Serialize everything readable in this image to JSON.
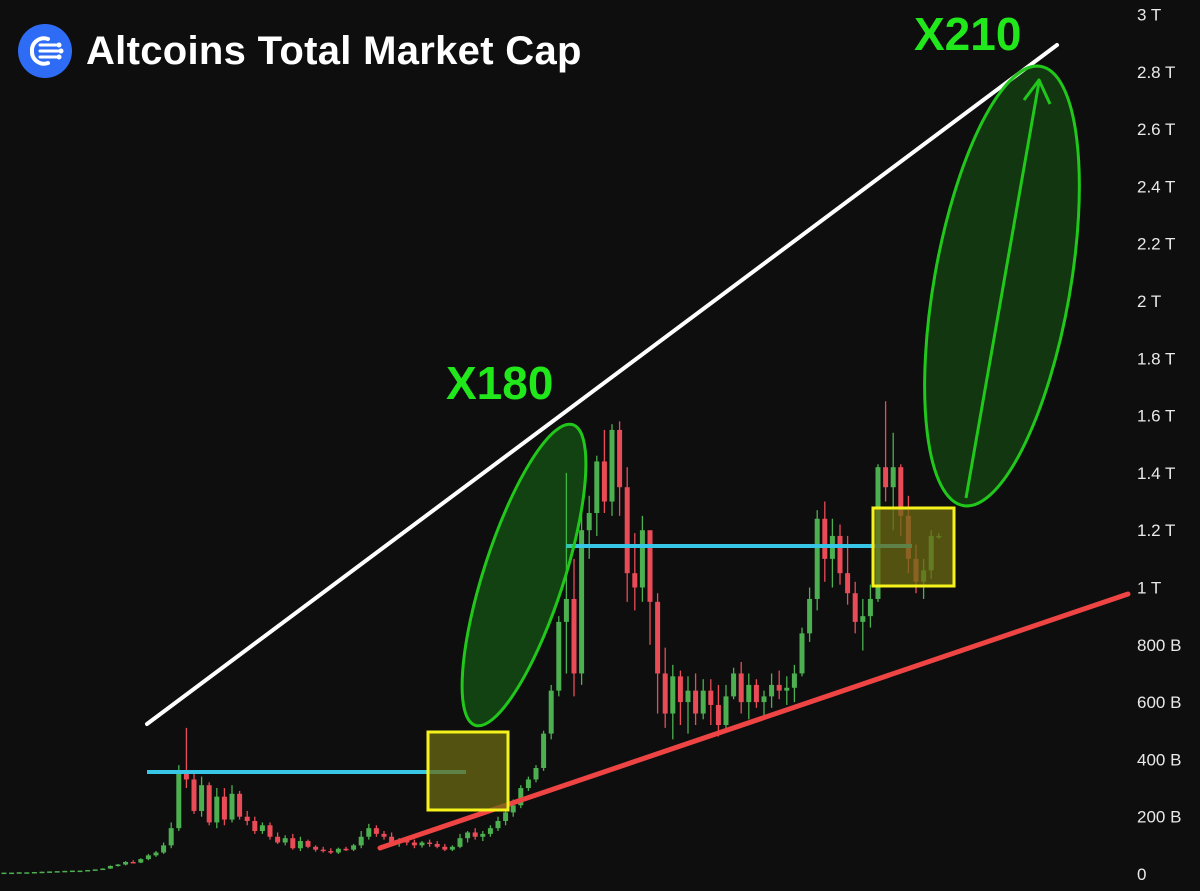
{
  "header": {
    "title": "Altcoins Total Market Cap",
    "logo_icon": "satellite-logo-icon"
  },
  "annotations": {
    "x180": "X180",
    "x210": "X210"
  },
  "colors": {
    "background": "#0e0e0e",
    "up": "#4caf50",
    "down": "#e94b57",
    "resistance": "#ffffff",
    "support": "#ef4444",
    "level": "#38c6e6",
    "zone_fill": "#6b6a12",
    "zone_stroke": "#f5f11a",
    "ellipse": "#21c81b",
    "label": "#21e81b"
  },
  "chart_data": {
    "type": "candlestick",
    "title": "Altcoins Total Market Cap",
    "y_unit": "USD",
    "ylim": [
      0,
      3000000000000
    ],
    "y_ticks": [
      {
        "value": 0,
        "label": "0"
      },
      {
        "value": 200000000000,
        "label": "200 B"
      },
      {
        "value": 400000000000,
        "label": "400 B"
      },
      {
        "value": 600000000000,
        "label": "600 B"
      },
      {
        "value": 800000000000,
        "label": "800 B"
      },
      {
        "value": 1000000000000,
        "label": "1 T"
      },
      {
        "value": 1200000000000,
        "label": "1.2 T"
      },
      {
        "value": 1400000000000,
        "label": "1.4 T"
      },
      {
        "value": 1600000000000,
        "label": "1.6 T"
      },
      {
        "value": 1800000000000,
        "label": "1.8 T"
      },
      {
        "value": 2000000000000,
        "label": "2 T"
      },
      {
        "value": 2200000000000,
        "label": "2.2 T"
      },
      {
        "value": 2400000000000,
        "label": "2.4 T"
      },
      {
        "value": 2600000000000,
        "label": "2.6 T"
      },
      {
        "value": 2800000000000,
        "label": "2.8 T"
      },
      {
        "value": 3000000000000,
        "label": "3 T"
      }
    ],
    "grid": false,
    "candles_units": "billions USD",
    "candles": [
      [
        5,
        5,
        5,
        5
      ],
      [
        5,
        5,
        5,
        5
      ],
      [
        5,
        6,
        5,
        6
      ],
      [
        6,
        6,
        6,
        6
      ],
      [
        6,
        7,
        6,
        7
      ],
      [
        7,
        8,
        7,
        8
      ],
      [
        8,
        9,
        8,
        9
      ],
      [
        9,
        10,
        9,
        10
      ],
      [
        10,
        11,
        10,
        11
      ],
      [
        11,
        12,
        11,
        12
      ],
      [
        12,
        12,
        12,
        12
      ],
      [
        12,
        14,
        12,
        14
      ],
      [
        14,
        16,
        13,
        16
      ],
      [
        16,
        20,
        15,
        19
      ],
      [
        19,
        30,
        18,
        28
      ],
      [
        28,
        35,
        26,
        33
      ],
      [
        33,
        45,
        30,
        42
      ],
      [
        42,
        48,
        38,
        40
      ],
      [
        40,
        55,
        38,
        52
      ],
      [
        52,
        70,
        48,
        65
      ],
      [
        65,
        80,
        60,
        75
      ],
      [
        75,
        110,
        70,
        100
      ],
      [
        100,
        180,
        90,
        160
      ],
      [
        160,
        380,
        150,
        355
      ],
      [
        355,
        510,
        300,
        330
      ],
      [
        330,
        350,
        210,
        220
      ],
      [
        220,
        340,
        200,
        310
      ],
      [
        310,
        320,
        170,
        180
      ],
      [
        180,
        300,
        160,
        270
      ],
      [
        270,
        300,
        170,
        190
      ],
      [
        190,
        310,
        180,
        280
      ],
      [
        280,
        290,
        190,
        200
      ],
      [
        200,
        220,
        170,
        185
      ],
      [
        185,
        200,
        140,
        150
      ],
      [
        150,
        180,
        140,
        170
      ],
      [
        170,
        180,
        120,
        130
      ],
      [
        130,
        145,
        105,
        110
      ],
      [
        110,
        135,
        100,
        125
      ],
      [
        125,
        140,
        85,
        90
      ],
      [
        90,
        130,
        80,
        115
      ],
      [
        115,
        120,
        90,
        95
      ],
      [
        95,
        100,
        78,
        85
      ],
      [
        85,
        95,
        75,
        80
      ],
      [
        80,
        90,
        70,
        75
      ],
      [
        75,
        92,
        70,
        88
      ],
      [
        88,
        95,
        80,
        85
      ],
      [
        85,
        105,
        80,
        100
      ],
      [
        100,
        150,
        90,
        130
      ],
      [
        130,
        175,
        120,
        160
      ],
      [
        160,
        170,
        130,
        140
      ],
      [
        140,
        150,
        120,
        130
      ],
      [
        130,
        145,
        105,
        110
      ],
      [
        110,
        125,
        95,
        120
      ],
      [
        120,
        130,
        100,
        110
      ],
      [
        110,
        120,
        90,
        100
      ],
      [
        100,
        115,
        92,
        110
      ],
      [
        110,
        120,
        95,
        105
      ],
      [
        105,
        115,
        90,
        95
      ],
      [
        95,
        105,
        80,
        85
      ],
      [
        85,
        100,
        80,
        95
      ],
      [
        95,
        140,
        90,
        125
      ],
      [
        125,
        150,
        110,
        145
      ],
      [
        145,
        160,
        120,
        130
      ],
      [
        130,
        150,
        115,
        140
      ],
      [
        140,
        170,
        130,
        160
      ],
      [
        160,
        200,
        150,
        185
      ],
      [
        185,
        230,
        170,
        215
      ],
      [
        215,
        260,
        200,
        240
      ],
      [
        240,
        310,
        230,
        300
      ],
      [
        300,
        340,
        290,
        330
      ],
      [
        330,
        380,
        320,
        370
      ],
      [
        370,
        500,
        360,
        490
      ],
      [
        490,
        660,
        470,
        640
      ],
      [
        640,
        900,
        620,
        880
      ],
      [
        880,
        1400,
        700,
        960
      ],
      [
        960,
        1100,
        620,
        700
      ],
      [
        700,
        1260,
        660,
        1200
      ],
      [
        1200,
        1320,
        1100,
        1260
      ],
      [
        1260,
        1460,
        1180,
        1440
      ],
      [
        1440,
        1550,
        1260,
        1300
      ],
      [
        1300,
        1570,
        1250,
        1550
      ],
      [
        1550,
        1580,
        1250,
        1350
      ],
      [
        1350,
        1420,
        950,
        1050
      ],
      [
        1050,
        1190,
        920,
        1000
      ],
      [
        1000,
        1250,
        950,
        1200
      ],
      [
        1200,
        1100,
        800,
        950
      ],
      [
        950,
        980,
        560,
        700
      ],
      [
        700,
        790,
        510,
        560
      ],
      [
        560,
        730,
        470,
        690
      ],
      [
        690,
        710,
        520,
        600
      ],
      [
        600,
        690,
        490,
        640
      ],
      [
        640,
        700,
        520,
        560
      ],
      [
        560,
        680,
        540,
        640
      ],
      [
        640,
        680,
        520,
        590
      ],
      [
        590,
        660,
        480,
        520
      ],
      [
        520,
        660,
        500,
        620
      ],
      [
        620,
        720,
        610,
        700
      ],
      [
        700,
        740,
        560,
        600
      ],
      [
        600,
        700,
        540,
        660
      ],
      [
        660,
        680,
        580,
        600
      ],
      [
        600,
        640,
        540,
        620
      ],
      [
        620,
        700,
        580,
        660
      ],
      [
        660,
        710,
        610,
        640
      ],
      [
        640,
        690,
        590,
        650
      ],
      [
        650,
        730,
        600,
        700
      ],
      [
        700,
        860,
        690,
        840
      ],
      [
        840,
        1000,
        810,
        960
      ],
      [
        960,
        1270,
        920,
        1240
      ],
      [
        1240,
        1300,
        1020,
        1100
      ],
      [
        1100,
        1240,
        1000,
        1180
      ],
      [
        1180,
        1220,
        1010,
        1050
      ],
      [
        1050,
        1180,
        940,
        980
      ],
      [
        980,
        1020,
        840,
        880
      ],
      [
        880,
        960,
        780,
        900
      ],
      [
        900,
        1010,
        860,
        960
      ],
      [
        960,
        1430,
        950,
        1420
      ],
      [
        1420,
        1650,
        1300,
        1350
      ],
      [
        1350,
        1540,
        1200,
        1420
      ],
      [
        1420,
        1430,
        1180,
        1250
      ],
      [
        1250,
        1320,
        1050,
        1100
      ],
      [
        1100,
        1150,
        980,
        1020
      ],
      [
        1020,
        1100,
        960,
        1060
      ],
      [
        1060,
        1200,
        1030,
        1180
      ],
      [
        1180,
        1190,
        1170,
        1180
      ]
    ],
    "lines": [
      {
        "name": "",
        "role": "resistance trendline",
        "from": [
          0,
          360
        ],
        "to": [
          1,
          2900
        ]
      },
      {
        "name": "",
        "role": "support trendline",
        "from": [
          0,
          90
        ],
        "to": [
          1,
          1000
        ]
      },
      {
        "name": "",
        "role": "horizontal level",
        "value_b": 360
      },
      {
        "name": "",
        "role": "horizontal level",
        "value_b": 1150
      }
    ]
  }
}
